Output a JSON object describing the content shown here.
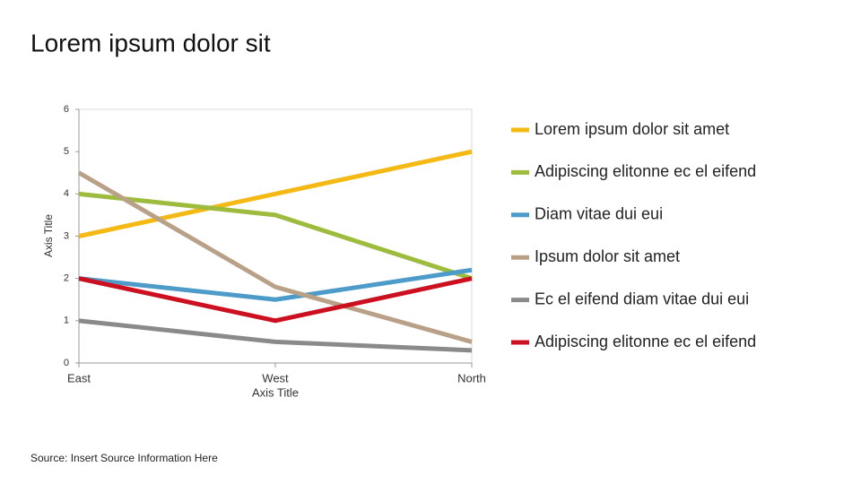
{
  "chart_data": {
    "type": "line",
    "title": "Lorem ipsum dolor sit",
    "source": "Source: Insert Source Information Here",
    "x_label": "Axis Title",
    "y_label": "Axis Title",
    "categories": [
      "East",
      "West",
      "North"
    ],
    "series": [
      {
        "name": "Lorem ipsum dolor sit amet",
        "color": "#f5b915",
        "values": [
          3,
          4,
          5
        ]
      },
      {
        "name": "Adipiscing elitonne ec el eifend",
        "color": "#9dbb3d",
        "values": [
          4,
          3.5,
          2
        ]
      },
      {
        "name": "Diam vitae dui eui",
        "color": "#4d9bc9",
        "values": [
          2,
          1.5,
          2.2
        ]
      },
      {
        "name": "Ipsum dolor sit amet",
        "color": "#b9a187",
        "values": [
          4.5,
          1.8,
          0.5
        ]
      },
      {
        "name": "Ec el eifend diam vitae dui eui",
        "color": "#8a8a8a",
        "values": [
          1,
          0.5,
          0.3
        ]
      },
      {
        "name": "Adipiscing elitonne ec el eifend",
        "color": "#cc1020",
        "values": [
          2,
          1,
          2
        ]
      }
    ],
    "ylim": [
      0,
      6
    ],
    "yticks": [
      0,
      1,
      2,
      3,
      4,
      5,
      6
    ],
    "grid": false,
    "legend": "right"
  }
}
